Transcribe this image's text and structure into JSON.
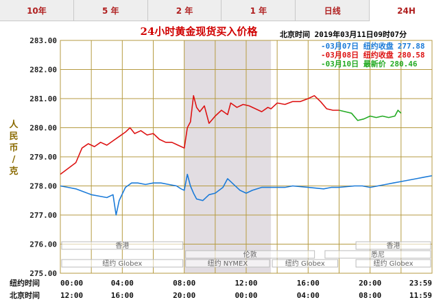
{
  "tabs": [
    {
      "label": "10年",
      "active": false
    },
    {
      "label": "5 年",
      "active": false
    },
    {
      "label": "2 年",
      "active": false
    },
    {
      "label": "1 年",
      "active": false
    },
    {
      "label": "日线",
      "active": false
    },
    {
      "label": "24H",
      "active": true
    }
  ],
  "header": {
    "title": "24小时黄金现货买入价格",
    "info": "北京时间  2019年03月11日09时07分"
  },
  "colors": {
    "series_0307": "#1a7ad8",
    "series_0308": "#dd1111",
    "series_0310": "#22aa22",
    "grid": "#b59a40",
    "shade": "#e2dde2"
  },
  "chart_data": {
    "type": "line",
    "ylabel": "人民币/克",
    "ylim": [
      275.0,
      283.0
    ],
    "yticks": [
      "283.00",
      "282.00",
      "281.00",
      "280.00",
      "279.00",
      "278.00",
      "277.00",
      "276.00",
      "275.00"
    ],
    "x_row_labels": [
      "纽约时间",
      "北京时间"
    ],
    "x_ticks_ny": [
      "00:00",
      "04:00",
      "08:00",
      "12:00",
      "16:00",
      "20:00",
      "23:59"
    ],
    "x_ticks_bj": [
      "12:00",
      "16:00",
      "20:00",
      "00:00",
      "04:00",
      "08:00",
      "11:59"
    ],
    "shaded_hours_ny": [
      8.0,
      13.6
    ],
    "legend": [
      {
        "label": "-03月07日  纽约收盘",
        "value": "277.88",
        "color": "#1a7ad8"
      },
      {
        "label": "-03月08日  纽约收盘",
        "value": "280.58",
        "color": "#dd1111"
      },
      {
        "label": "-03月10日    最新价",
        "value": "280.46",
        "color": "#22aa22"
      }
    ],
    "markets": [
      {
        "label": "香港",
        "row": 0,
        "start": 0,
        "end": 8
      },
      {
        "label": "伦敦",
        "row": 1,
        "start": 8,
        "end": 16.5
      },
      {
        "label": "纽约 Globex",
        "row": 2,
        "start": 0,
        "end": 8
      },
      {
        "label": "纽约 NYMEX",
        "row": 2,
        "start": 8,
        "end": 13.6
      },
      {
        "label": "纽约 Globex",
        "row": 2,
        "start": 13.6,
        "end": 18
      },
      {
        "label": "香港",
        "row": 0,
        "start": 19,
        "end": 24
      },
      {
        "label": "悉尼",
        "row": 1,
        "start": 17,
        "end": 24
      },
      {
        "label": "纽约 Globex",
        "row": 2,
        "start": 19,
        "end": 24
      }
    ],
    "series": [
      {
        "name": "03月07日",
        "color": "#1a7ad8",
        "points": [
          [
            0,
            278.0
          ],
          [
            0.5,
            277.95
          ],
          [
            1,
            277.9
          ],
          [
            1.5,
            277.8
          ],
          [
            2,
            277.7
          ],
          [
            2.5,
            277.65
          ],
          [
            3,
            277.6
          ],
          [
            3.4,
            277.7
          ],
          [
            3.6,
            277.0
          ],
          [
            3.8,
            277.5
          ],
          [
            4.2,
            277.95
          ],
          [
            4.6,
            278.1
          ],
          [
            5,
            278.1
          ],
          [
            5.5,
            278.05
          ],
          [
            6,
            278.1
          ],
          [
            6.5,
            278.1
          ],
          [
            7,
            278.05
          ],
          [
            7.5,
            278.0
          ],
          [
            7.8,
            277.9
          ],
          [
            8,
            277.85
          ],
          [
            8.2,
            278.4
          ],
          [
            8.4,
            278.0
          ],
          [
            8.6,
            277.75
          ],
          [
            8.8,
            277.55
          ],
          [
            9.2,
            277.5
          ],
          [
            9.6,
            277.7
          ],
          [
            10,
            277.75
          ],
          [
            10.5,
            277.95
          ],
          [
            10.8,
            278.25
          ],
          [
            11.2,
            278.05
          ],
          [
            11.6,
            277.85
          ],
          [
            12,
            277.75
          ],
          [
            12.4,
            277.85
          ],
          [
            13,
            277.95
          ],
          [
            13.6,
            277.95
          ],
          [
            14.5,
            277.95
          ],
          [
            15,
            278.0
          ],
          [
            16,
            277.95
          ],
          [
            17,
            277.9
          ],
          [
            17.5,
            277.95
          ],
          [
            18,
            277.95
          ],
          [
            19,
            278.0
          ],
          [
            19.5,
            278.0
          ],
          [
            20,
            277.95
          ],
          [
            20.5,
            278.0
          ],
          [
            21,
            278.05
          ],
          [
            21.5,
            278.1
          ],
          [
            22,
            278.15
          ],
          [
            22.5,
            278.2
          ],
          [
            23,
            278.25
          ],
          [
            23.5,
            278.3
          ],
          [
            23.99,
            278.35
          ]
        ]
      },
      {
        "name": "03月08日",
        "color": "#dd1111",
        "points": [
          [
            0,
            278.4
          ],
          [
            0.5,
            278.6
          ],
          [
            1,
            278.8
          ],
          [
            1.4,
            279.3
          ],
          [
            1.8,
            279.45
          ],
          [
            2.2,
            279.35
          ],
          [
            2.6,
            279.5
          ],
          [
            3,
            279.4
          ],
          [
            3.4,
            279.55
          ],
          [
            3.8,
            279.7
          ],
          [
            4.2,
            279.85
          ],
          [
            4.5,
            280.0
          ],
          [
            4.8,
            279.8
          ],
          [
            5.2,
            279.9
          ],
          [
            5.6,
            279.75
          ],
          [
            6,
            279.8
          ],
          [
            6.4,
            279.6
          ],
          [
            6.8,
            279.5
          ],
          [
            7.2,
            279.5
          ],
          [
            7.6,
            279.4
          ],
          [
            8,
            279.3
          ],
          [
            8.2,
            280.0
          ],
          [
            8.4,
            280.2
          ],
          [
            8.6,
            281.1
          ],
          [
            8.8,
            280.7
          ],
          [
            9,
            280.55
          ],
          [
            9.3,
            280.75
          ],
          [
            9.6,
            280.15
          ],
          [
            10,
            280.4
          ],
          [
            10.4,
            280.6
          ],
          [
            10.8,
            280.45
          ],
          [
            11,
            280.85
          ],
          [
            11.4,
            280.7
          ],
          [
            11.8,
            280.8
          ],
          [
            12.2,
            280.75
          ],
          [
            12.6,
            280.65
          ],
          [
            13,
            280.55
          ],
          [
            13.4,
            280.7
          ],
          [
            13.6,
            280.65
          ],
          [
            14,
            280.85
          ],
          [
            14.5,
            280.8
          ],
          [
            15,
            280.9
          ],
          [
            15.5,
            280.9
          ],
          [
            16,
            281.0
          ],
          [
            16.4,
            281.1
          ],
          [
            16.8,
            280.9
          ],
          [
            17.2,
            280.65
          ],
          [
            17.6,
            280.6
          ],
          [
            18,
            280.6
          ]
        ]
      },
      {
        "name": "03月10日",
        "color": "#22aa22",
        "points": [
          [
            18,
            280.6
          ],
          [
            18.4,
            280.55
          ],
          [
            18.8,
            280.5
          ],
          [
            19.2,
            280.25
          ],
          [
            19.6,
            280.3
          ],
          [
            20,
            280.4
          ],
          [
            20.4,
            280.35
          ],
          [
            20.8,
            280.4
          ],
          [
            21.2,
            280.35
          ],
          [
            21.6,
            280.4
          ],
          [
            21.8,
            280.6
          ],
          [
            22,
            280.5
          ]
        ]
      }
    ]
  }
}
